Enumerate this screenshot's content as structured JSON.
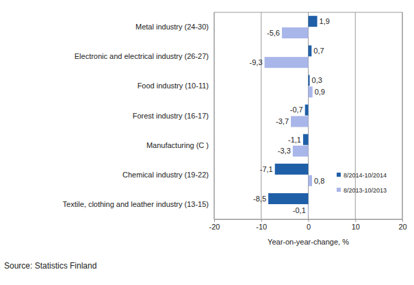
{
  "chart_data": {
    "type": "bar",
    "orientation": "horizontal",
    "categories": [
      "Metal industry (24-30)",
      "Electronic and electrical industry (26-27)",
      "Food industry (10-11)",
      "Forest industry (16-17)",
      "Manufacturing (C )",
      "Chemical industry (19-22)",
      "Textile, clothing and leather industry (13-15)"
    ],
    "series": [
      {
        "name": "8/2014-10/2014",
        "color": "#1f5fa8",
        "values": [
          1.9,
          0.7,
          0.3,
          -0.7,
          -1.1,
          -7.1,
          -8.5
        ],
        "value_labels": [
          "1,9",
          "0,7",
          "0,3",
          "-0,7",
          "-1,1",
          "-7,1",
          "-8,5"
        ]
      },
      {
        "name": "8/2013-10/2013",
        "color": "#a9b6e9",
        "values": [
          -5.6,
          -9.3,
          0.9,
          -3.7,
          -3.3,
          0.8,
          -0.1
        ],
        "value_labels": [
          "-5,6",
          "-9,3",
          "0,9",
          "-3,7",
          "-3,3",
          "0,8",
          "-0,1"
        ]
      }
    ],
    "x_label": "Year-on-year-change, %",
    "xlim": [
      -20,
      20
    ],
    "xticks": [
      -20,
      -10,
      0,
      10,
      20
    ],
    "grid": true,
    "legend": "lower right",
    "data_labels": true,
    "source": "Source: Statistics Finland"
  }
}
